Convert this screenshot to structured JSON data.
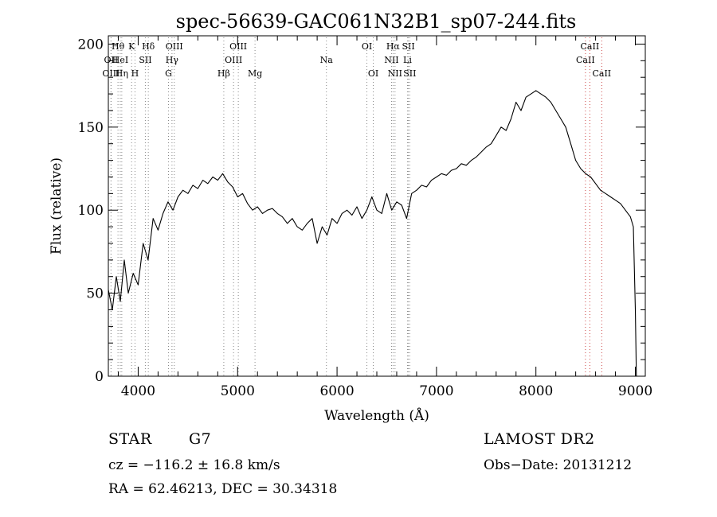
{
  "chart_data": {
    "type": "line",
    "title": "spec-56639-GAC061N32B1_sp07-244.fits",
    "xlabel": "Wavelength (Å)",
    "ylabel": "Flux (relative)",
    "xlim": [
      3700,
      9100
    ],
    "ylim": [
      0,
      205
    ],
    "xticks": [
      "4000",
      "5000",
      "6000",
      "7000",
      "8000",
      "9000"
    ],
    "yticks": [
      "0",
      "50",
      "100",
      "150",
      "200"
    ],
    "grid": false,
    "series": [
      {
        "x": [
          3700,
          3740,
          3780,
          3820,
          3860,
          3900,
          3950,
          4000,
          4050,
          4100,
          4150,
          4200,
          4250,
          4300,
          4350,
          4400,
          4450,
          4500,
          4550,
          4600,
          4650,
          4700,
          4750,
          4800,
          4850,
          4900,
          4950,
          5000,
          5050,
          5100,
          5150,
          5200,
          5250,
          5300,
          5350,
          5400,
          5450,
          5500,
          5550,
          5600,
          5650,
          5700,
          5750,
          5800,
          5850,
          5900,
          5950,
          6000,
          6050,
          6100,
          6150,
          6200,
          6250,
          6300,
          6350,
          6400,
          6450,
          6500,
          6550,
          6600,
          6650,
          6700,
          6750,
          6800,
          6850,
          6900,
          6950,
          7000,
          7050,
          7100,
          7150,
          7200,
          7250,
          7300,
          7350,
          7400,
          7450,
          7500,
          7550,
          7600,
          7650,
          7700,
          7750,
          7800,
          7850,
          7900,
          7950,
          8000,
          8050,
          8100,
          8150,
          8200,
          8250,
          8300,
          8350,
          8400,
          8450,
          8500,
          8550,
          8600,
          8650,
          8700,
          8750,
          8800,
          8850,
          8900,
          8950,
          8980,
          9000,
          9010
        ],
        "y": [
          52,
          40,
          60,
          45,
          70,
          50,
          62,
          55,
          80,
          70,
          95,
          88,
          98,
          105,
          100,
          108,
          112,
          110,
          115,
          113,
          118,
          116,
          120,
          118,
          122,
          117,
          114,
          108,
          110,
          104,
          100,
          102,
          98,
          100,
          101,
          98,
          96,
          92,
          95,
          90,
          88,
          92,
          95,
          80,
          90,
          85,
          95,
          92,
          98,
          100,
          97,
          102,
          95,
          100,
          108,
          100,
          98,
          110,
          100,
          105,
          103,
          95,
          110,
          112,
          115,
          114,
          118,
          120,
          122,
          121,
          124,
          125,
          128,
          127,
          130,
          132,
          135,
          138,
          140,
          145,
          150,
          148,
          155,
          165,
          160,
          168,
          170,
          172,
          170,
          168,
          165,
          160,
          155,
          150,
          140,
          130,
          125,
          122,
          120,
          116,
          112,
          110,
          108,
          106,
          104,
          100,
          96,
          90,
          40,
          0
        ]
      }
    ],
    "lines": [
      {
        "name": "Hθ",
        "x": 3797,
        "row": 0,
        "color": "#888888"
      },
      {
        "name": "OII",
        "x": 3727,
        "row": 1,
        "color": "#888888"
      },
      {
        "name": "OIII",
        "x": 3727,
        "row": 2,
        "color": "#888888"
      },
      {
        "name": "HeI",
        "x": 3820,
        "row": 1,
        "color": "#888888"
      },
      {
        "name": "Hη",
        "x": 3835,
        "row": 2,
        "color": "#888888"
      },
      {
        "name": "K",
        "x": 3934,
        "row": 0,
        "color": "#888888"
      },
      {
        "name": "H",
        "x": 3968,
        "row": 2,
        "color": "#888888"
      },
      {
        "name": "SII",
        "x": 4072,
        "row": 1,
        "color": "#888888"
      },
      {
        "name": "Hδ",
        "x": 4102,
        "row": 0,
        "color": "#888888"
      },
      {
        "name": "OIII",
        "x": 4363,
        "row": 0,
        "color": "#888888"
      },
      {
        "name": "Hγ",
        "x": 4340,
        "row": 1,
        "color": "#888888"
      },
      {
        "name": "G",
        "x": 4305,
        "row": 2,
        "color": "#888888"
      },
      {
        "name": "Hβ",
        "x": 4861,
        "row": 2,
        "color": "#888888"
      },
      {
        "name": "OIII",
        "x": 4959,
        "row": 1,
        "color": "#888888"
      },
      {
        "name": "OIII",
        "x": 5007,
        "row": 0,
        "color": "#888888"
      },
      {
        "name": "Mg",
        "x": 5175,
        "row": 2,
        "color": "#888888"
      },
      {
        "name": "Na",
        "x": 5893,
        "row": 1,
        "color": "#888888"
      },
      {
        "name": "OI",
        "x": 6300,
        "row": 0,
        "color": "#888888"
      },
      {
        "name": "OI",
        "x": 6364,
        "row": 2,
        "color": "#888888"
      },
      {
        "name": "NII",
        "x": 6548,
        "row": 1,
        "color": "#888888"
      },
      {
        "name": "Hα",
        "x": 6563,
        "row": 0,
        "color": "#888888"
      },
      {
        "name": "NII",
        "x": 6583,
        "row": 2,
        "color": "#888888"
      },
      {
        "name": "Li",
        "x": 6708,
        "row": 1,
        "color": "#888888"
      },
      {
        "name": "SII",
        "x": 6717,
        "row": 0,
        "color": "#888888"
      },
      {
        "name": "SII",
        "x": 6731,
        "row": 2,
        "color": "#888888"
      },
      {
        "name": "CaII",
        "x": 8498,
        "row": 1,
        "color": "#cc4444"
      },
      {
        "name": "CaII",
        "x": 8542,
        "row": 0,
        "color": "#cc4444"
      },
      {
        "name": "CaII",
        "x": 8662,
        "row": 2,
        "color": "#cc4444"
      }
    ]
  },
  "info": {
    "object_type": "STAR",
    "subclass": "G7",
    "survey": "LAMOST DR2",
    "cz": "cz = −116.2 ± 16.8 km/s",
    "obs_date": "Obs−Date: 20131212",
    "radec": "RA =  62.46213, DEC =  30.34318"
  }
}
